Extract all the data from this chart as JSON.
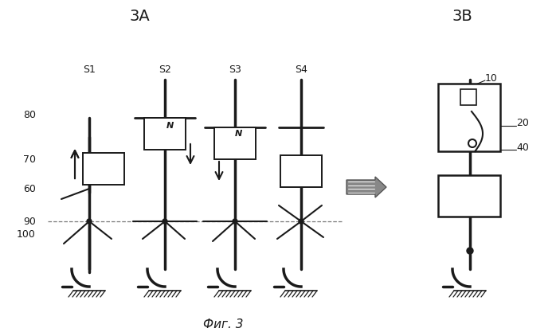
{
  "title_3A": "3A",
  "title_3B": "3B",
  "caption": "Фиг. 3",
  "labels_s": [
    "S1",
    "S2",
    "S3",
    "S4"
  ],
  "bg_color": "#ffffff",
  "line_color": "#1a1a1a"
}
